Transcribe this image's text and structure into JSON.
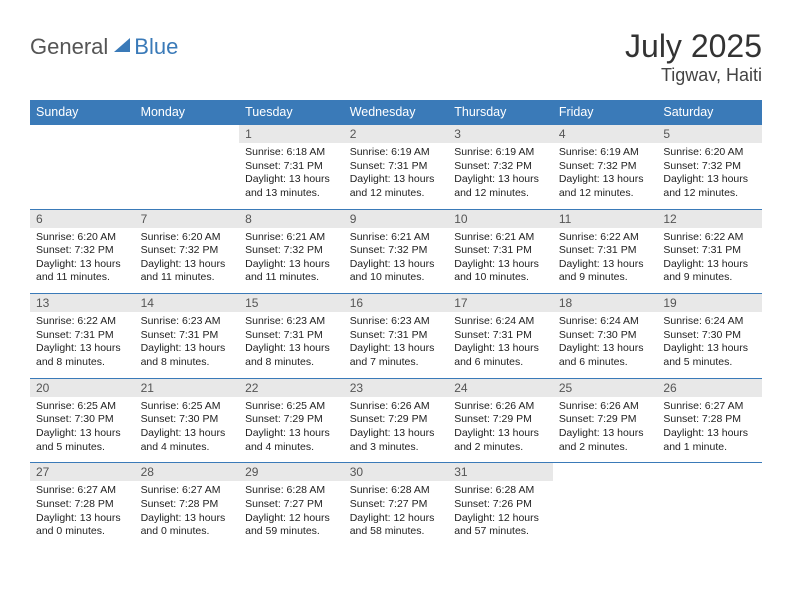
{
  "brand": {
    "part1": "General",
    "part2": "Blue"
  },
  "title": "July 2025",
  "location": "Tigwav, Haiti",
  "colors": {
    "header_bg": "#3a7ab8",
    "daynum_bg": "#e8e8e8",
    "row_border": "#3a7ab8"
  },
  "dayNames": [
    "Sunday",
    "Monday",
    "Tuesday",
    "Wednesday",
    "Thursday",
    "Friday",
    "Saturday"
  ],
  "weeks": [
    [
      {
        "n": "",
        "lines": []
      },
      {
        "n": "",
        "lines": []
      },
      {
        "n": "1",
        "lines": [
          "Sunrise: 6:18 AM",
          "Sunset: 7:31 PM",
          "Daylight: 13 hours",
          "and 13 minutes."
        ]
      },
      {
        "n": "2",
        "lines": [
          "Sunrise: 6:19 AM",
          "Sunset: 7:31 PM",
          "Daylight: 13 hours",
          "and 12 minutes."
        ]
      },
      {
        "n": "3",
        "lines": [
          "Sunrise: 6:19 AM",
          "Sunset: 7:32 PM",
          "Daylight: 13 hours",
          "and 12 minutes."
        ]
      },
      {
        "n": "4",
        "lines": [
          "Sunrise: 6:19 AM",
          "Sunset: 7:32 PM",
          "Daylight: 13 hours",
          "and 12 minutes."
        ]
      },
      {
        "n": "5",
        "lines": [
          "Sunrise: 6:20 AM",
          "Sunset: 7:32 PM",
          "Daylight: 13 hours",
          "and 12 minutes."
        ]
      }
    ],
    [
      {
        "n": "6",
        "lines": [
          "Sunrise: 6:20 AM",
          "Sunset: 7:32 PM",
          "Daylight: 13 hours",
          "and 11 minutes."
        ]
      },
      {
        "n": "7",
        "lines": [
          "Sunrise: 6:20 AM",
          "Sunset: 7:32 PM",
          "Daylight: 13 hours",
          "and 11 minutes."
        ]
      },
      {
        "n": "8",
        "lines": [
          "Sunrise: 6:21 AM",
          "Sunset: 7:32 PM",
          "Daylight: 13 hours",
          "and 11 minutes."
        ]
      },
      {
        "n": "9",
        "lines": [
          "Sunrise: 6:21 AM",
          "Sunset: 7:32 PM",
          "Daylight: 13 hours",
          "and 10 minutes."
        ]
      },
      {
        "n": "10",
        "lines": [
          "Sunrise: 6:21 AM",
          "Sunset: 7:31 PM",
          "Daylight: 13 hours",
          "and 10 minutes."
        ]
      },
      {
        "n": "11",
        "lines": [
          "Sunrise: 6:22 AM",
          "Sunset: 7:31 PM",
          "Daylight: 13 hours",
          "and 9 minutes."
        ]
      },
      {
        "n": "12",
        "lines": [
          "Sunrise: 6:22 AM",
          "Sunset: 7:31 PM",
          "Daylight: 13 hours",
          "and 9 minutes."
        ]
      }
    ],
    [
      {
        "n": "13",
        "lines": [
          "Sunrise: 6:22 AM",
          "Sunset: 7:31 PM",
          "Daylight: 13 hours",
          "and 8 minutes."
        ]
      },
      {
        "n": "14",
        "lines": [
          "Sunrise: 6:23 AM",
          "Sunset: 7:31 PM",
          "Daylight: 13 hours",
          "and 8 minutes."
        ]
      },
      {
        "n": "15",
        "lines": [
          "Sunrise: 6:23 AM",
          "Sunset: 7:31 PM",
          "Daylight: 13 hours",
          "and 8 minutes."
        ]
      },
      {
        "n": "16",
        "lines": [
          "Sunrise: 6:23 AM",
          "Sunset: 7:31 PM",
          "Daylight: 13 hours",
          "and 7 minutes."
        ]
      },
      {
        "n": "17",
        "lines": [
          "Sunrise: 6:24 AM",
          "Sunset: 7:31 PM",
          "Daylight: 13 hours",
          "and 6 minutes."
        ]
      },
      {
        "n": "18",
        "lines": [
          "Sunrise: 6:24 AM",
          "Sunset: 7:30 PM",
          "Daylight: 13 hours",
          "and 6 minutes."
        ]
      },
      {
        "n": "19",
        "lines": [
          "Sunrise: 6:24 AM",
          "Sunset: 7:30 PM",
          "Daylight: 13 hours",
          "and 5 minutes."
        ]
      }
    ],
    [
      {
        "n": "20",
        "lines": [
          "Sunrise: 6:25 AM",
          "Sunset: 7:30 PM",
          "Daylight: 13 hours",
          "and 5 minutes."
        ]
      },
      {
        "n": "21",
        "lines": [
          "Sunrise: 6:25 AM",
          "Sunset: 7:30 PM",
          "Daylight: 13 hours",
          "and 4 minutes."
        ]
      },
      {
        "n": "22",
        "lines": [
          "Sunrise: 6:25 AM",
          "Sunset: 7:29 PM",
          "Daylight: 13 hours",
          "and 4 minutes."
        ]
      },
      {
        "n": "23",
        "lines": [
          "Sunrise: 6:26 AM",
          "Sunset: 7:29 PM",
          "Daylight: 13 hours",
          "and 3 minutes."
        ]
      },
      {
        "n": "24",
        "lines": [
          "Sunrise: 6:26 AM",
          "Sunset: 7:29 PM",
          "Daylight: 13 hours",
          "and 2 minutes."
        ]
      },
      {
        "n": "25",
        "lines": [
          "Sunrise: 6:26 AM",
          "Sunset: 7:29 PM",
          "Daylight: 13 hours",
          "and 2 minutes."
        ]
      },
      {
        "n": "26",
        "lines": [
          "Sunrise: 6:27 AM",
          "Sunset: 7:28 PM",
          "Daylight: 13 hours",
          "and 1 minute."
        ]
      }
    ],
    [
      {
        "n": "27",
        "lines": [
          "Sunrise: 6:27 AM",
          "Sunset: 7:28 PM",
          "Daylight: 13 hours",
          "and 0 minutes."
        ]
      },
      {
        "n": "28",
        "lines": [
          "Sunrise: 6:27 AM",
          "Sunset: 7:28 PM",
          "Daylight: 13 hours",
          "and 0 minutes."
        ]
      },
      {
        "n": "29",
        "lines": [
          "Sunrise: 6:28 AM",
          "Sunset: 7:27 PM",
          "Daylight: 12 hours",
          "and 59 minutes."
        ]
      },
      {
        "n": "30",
        "lines": [
          "Sunrise: 6:28 AM",
          "Sunset: 7:27 PM",
          "Daylight: 12 hours",
          "and 58 minutes."
        ]
      },
      {
        "n": "31",
        "lines": [
          "Sunrise: 6:28 AM",
          "Sunset: 7:26 PM",
          "Daylight: 12 hours",
          "and 57 minutes."
        ]
      },
      {
        "n": "",
        "lines": []
      },
      {
        "n": "",
        "lines": []
      }
    ]
  ]
}
